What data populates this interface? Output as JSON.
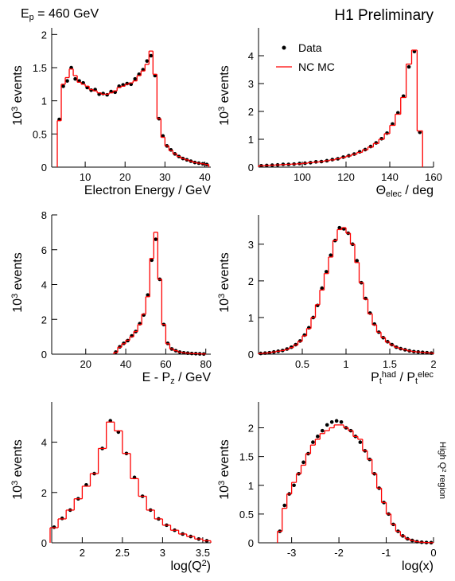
{
  "header": {
    "energy": [
      "E",
      {
        "sub": "p"
      },
      " = 460 GeV"
    ],
    "label": "H1 Preliminary"
  },
  "side_note": [
    "High Q",
    {
      "sup": "2"
    },
    " region"
  ],
  "chart_data": [
    {
      "type": "histogram",
      "xlabel": [
        "Electron Energy / GeV"
      ],
      "ylabel": [
        "10",
        {
          "sup": "3"
        },
        " events"
      ],
      "xlim": [
        1.6,
        41.5
      ],
      "ylim": [
        0,
        2.1
      ],
      "xticks": [
        10,
        20,
        30,
        40
      ],
      "yticks": [
        0,
        0.5,
        1,
        1.5,
        2
      ],
      "bins": [
        3,
        4,
        5,
        6,
        7,
        8,
        9,
        10,
        11,
        12,
        13,
        14,
        15,
        16,
        17,
        18,
        19,
        20,
        21,
        22,
        23,
        24,
        25,
        26,
        27,
        28,
        29,
        30,
        31,
        32,
        33,
        34,
        35,
        36,
        37,
        38,
        39,
        40,
        41
      ],
      "series": [
        {
          "color": "#000000",
          "style": "points",
          "values": [
            0.72,
            1.22,
            1.3,
            1.5,
            1.33,
            1.3,
            1.27,
            1.2,
            1.16,
            1.17,
            1.1,
            1.11,
            1.09,
            1.14,
            1.13,
            1.22,
            1.24,
            1.26,
            1.25,
            1.33,
            1.4,
            1.47,
            1.6,
            1.68,
            1.38,
            0.73,
            0.47,
            0.32,
            0.26,
            0.2,
            0.16,
            0.13,
            0.11,
            0.09,
            0.07,
            0.06,
            0.05,
            0.04
          ]
        },
        {
          "color": "#ff0000",
          "style": "step",
          "values": [
            0.7,
            1.25,
            1.35,
            1.48,
            1.38,
            1.28,
            1.25,
            1.22,
            1.17,
            1.15,
            1.12,
            1.1,
            1.1,
            1.12,
            1.15,
            1.2,
            1.22,
            1.25,
            1.27,
            1.3,
            1.38,
            1.45,
            1.55,
            1.75,
            1.4,
            0.73,
            0.45,
            0.32,
            0.25,
            0.2,
            0.16,
            0.13,
            0.11,
            0.09,
            0.07,
            0.06,
            0.05,
            0.04
          ]
        }
      ]
    },
    {
      "type": "histogram",
      "xlabel": [
        "Θ",
        {
          "sub": "elec"
        },
        " / deg"
      ],
      "ylabel": [
        "10",
        {
          "sup": "3"
        },
        " events"
      ],
      "xlim": [
        80,
        160
      ],
      "ylim": [
        0,
        5
      ],
      "xticks": [
        100,
        120,
        140,
        160
      ],
      "yticks": [
        0,
        1,
        2,
        3,
        4
      ],
      "legend": "upper left",
      "bins": [
        80,
        82.5,
        85,
        87.5,
        90,
        92.5,
        95,
        97.5,
        100,
        102.5,
        105,
        107.5,
        110,
        112.5,
        115,
        117.5,
        120,
        122.5,
        125,
        127.5,
        130,
        132.5,
        135,
        137.5,
        140,
        142.5,
        145,
        147.5,
        150,
        152.5,
        155
      ],
      "series": [
        {
          "name": "Data",
          "color": "#000000",
          "style": "points",
          "values": [
            0.05,
            0.06,
            0.07,
            0.08,
            0.1,
            0.1,
            0.11,
            0.13,
            0.14,
            0.16,
            0.19,
            0.2,
            0.23,
            0.27,
            0.3,
            0.36,
            0.41,
            0.47,
            0.55,
            0.63,
            0.74,
            0.87,
            1.02,
            1.22,
            1.55,
            1.95,
            2.55,
            3.6,
            4.15,
            1.25
          ]
        },
        {
          "name": "NC MC",
          "color": "#ff0000",
          "style": "step",
          "values": [
            0.05,
            0.06,
            0.07,
            0.08,
            0.09,
            0.1,
            0.11,
            0.12,
            0.14,
            0.16,
            0.18,
            0.2,
            0.23,
            0.26,
            0.3,
            0.35,
            0.4,
            0.46,
            0.53,
            0.62,
            0.72,
            0.85,
            1.0,
            1.2,
            1.5,
            1.9,
            2.5,
            3.7,
            4.2,
            1.3
          ]
        }
      ]
    },
    {
      "type": "histogram",
      "xlabel": [
        "E - P",
        {
          "sub": "z"
        },
        " / GeV"
      ],
      "ylabel": [
        "10",
        {
          "sup": "3"
        },
        " events"
      ],
      "xlim": [
        3,
        82.5
      ],
      "ylim": [
        0,
        8
      ],
      "xticks": [
        20,
        40,
        60,
        80
      ],
      "yticks": [
        0,
        2,
        4,
        6,
        8
      ],
      "bins": [
        34,
        36,
        38,
        40,
        42,
        44,
        46,
        48,
        50,
        52,
        54,
        56,
        58,
        60,
        62,
        64,
        66,
        68,
        70,
        72,
        74,
        76,
        78,
        80
      ],
      "series": [
        {
          "color": "#000000",
          "style": "points",
          "values": [
            0.12,
            0.42,
            0.62,
            0.78,
            1.05,
            1.3,
            1.75,
            2.25,
            3.4,
            5.4,
            6.6,
            4.3,
            1.7,
            0.62,
            0.3,
            0.2,
            0.12,
            0.08,
            0.06,
            0.04,
            0.03,
            0.02,
            0.01
          ]
        },
        {
          "color": "#ff0000",
          "style": "step",
          "values": [
            0.1,
            0.4,
            0.6,
            0.8,
            1.0,
            1.3,
            1.7,
            2.3,
            3.3,
            5.5,
            7.0,
            4.3,
            1.7,
            0.6,
            0.3,
            0.2,
            0.12,
            0.08,
            0.06,
            0.04,
            0.03,
            0.02,
            0.01
          ]
        }
      ]
    },
    {
      "type": "histogram",
      "xlabel": [
        "P",
        {
          "sub": "t"
        },
        {
          "sup": "had"
        },
        " / P",
        {
          "sub": "t"
        },
        {
          "sup": "elec"
        }
      ],
      "ylabel": [
        "10",
        {
          "sup": "3"
        },
        " events"
      ],
      "xlim": [
        0,
        2
      ],
      "ylim": [
        0,
        3.8
      ],
      "xticks": [
        0.5,
        1,
        1.5,
        2
      ],
      "yticks": [
        0,
        1,
        2,
        3
      ],
      "bins": [
        0,
        0.05,
        0.1,
        0.15,
        0.2,
        0.25,
        0.3,
        0.35,
        0.4,
        0.45,
        0.5,
        0.55,
        0.6,
        0.65,
        0.7,
        0.75,
        0.8,
        0.85,
        0.9,
        0.95,
        1.0,
        1.05,
        1.1,
        1.15,
        1.2,
        1.25,
        1.3,
        1.35,
        1.4,
        1.45,
        1.5,
        1.55,
        1.6,
        1.65,
        1.7,
        1.75,
        1.8,
        1.85,
        1.9,
        1.95,
        2.0
      ],
      "series": [
        {
          "color": "#000000",
          "style": "points",
          "values": [
            0.02,
            0.03,
            0.04,
            0.06,
            0.08,
            0.1,
            0.14,
            0.19,
            0.26,
            0.36,
            0.52,
            0.72,
            1.0,
            1.33,
            1.8,
            2.25,
            2.7,
            3.1,
            3.45,
            3.42,
            3.3,
            3.0,
            2.55,
            1.95,
            1.52,
            1.12,
            0.82,
            0.6,
            0.45,
            0.34,
            0.26,
            0.19,
            0.15,
            0.12,
            0.09,
            0.07,
            0.06,
            0.05,
            0.04,
            0.03
          ]
        },
        {
          "color": "#ff0000",
          "style": "step",
          "values": [
            0.02,
            0.03,
            0.04,
            0.06,
            0.08,
            0.1,
            0.13,
            0.18,
            0.25,
            0.35,
            0.5,
            0.7,
            1.0,
            1.35,
            1.75,
            2.2,
            2.65,
            3.1,
            3.4,
            3.45,
            3.3,
            3.0,
            2.5,
            1.95,
            1.5,
            1.1,
            0.8,
            0.6,
            0.45,
            0.33,
            0.25,
            0.19,
            0.15,
            0.12,
            0.09,
            0.07,
            0.06,
            0.05,
            0.04,
            0.03
          ]
        }
      ]
    },
    {
      "type": "histogram",
      "xlabel": [
        "log(Q",
        {
          "sup": "2"
        },
        ")"
      ],
      "ylabel": [
        "10",
        {
          "sup": "3"
        },
        " events"
      ],
      "xlim": [
        1.62,
        3.6
      ],
      "ylim": [
        0,
        5.6
      ],
      "xticks": [
        2,
        2.5,
        3,
        3.5
      ],
      "yticks": [
        0,
        2,
        4
      ],
      "bins": [
        1.6,
        1.7,
        1.8,
        1.9,
        2.0,
        2.1,
        2.2,
        2.3,
        2.4,
        2.5,
        2.6,
        2.7,
        2.8,
        2.9,
        3.0,
        3.1,
        3.2,
        3.3,
        3.4,
        3.5,
        3.6
      ],
      "series": [
        {
          "color": "#000000",
          "style": "points",
          "values": [
            0.62,
            0.97,
            1.3,
            1.75,
            2.3,
            2.75,
            3.75,
            4.85,
            4.4,
            3.55,
            2.6,
            1.85,
            1.3,
            0.95,
            0.7,
            0.5,
            0.35,
            0.25,
            0.15,
            0.08
          ]
        },
        {
          "color": "#ff0000",
          "style": "step",
          "values": [
            0.6,
            0.95,
            1.3,
            1.75,
            2.25,
            2.75,
            3.75,
            4.8,
            4.45,
            3.55,
            2.55,
            1.85,
            1.3,
            0.95,
            0.7,
            0.5,
            0.35,
            0.25,
            0.15,
            0.08
          ]
        }
      ]
    },
    {
      "type": "histogram",
      "xlabel": [
        "log(x)"
      ],
      "ylabel": [
        "10",
        {
          "sup": "3"
        },
        " events"
      ],
      "xlim": [
        -3.7,
        0
      ],
      "ylim": [
        0,
        2.45
      ],
      "xticks": [
        -3,
        -2,
        -1,
        0
      ],
      "yticks": [
        0,
        0.5,
        1,
        1.5,
        2
      ],
      "bins": [
        -3.3,
        -3.2,
        -3.1,
        -3.0,
        -2.9,
        -2.8,
        -2.7,
        -2.6,
        -2.5,
        -2.4,
        -2.3,
        -2.2,
        -2.1,
        -2.0,
        -1.9,
        -1.8,
        -1.7,
        -1.6,
        -1.5,
        -1.4,
        -1.3,
        -1.2,
        -1.1,
        -1.0,
        -0.9,
        -0.8,
        -0.7,
        -0.6,
        -0.5,
        -0.4,
        -0.3,
        -0.2,
        -0.1,
        0
      ],
      "series": [
        {
          "color": "#000000",
          "style": "points",
          "values": [
            0.2,
            0.65,
            0.85,
            1.0,
            1.2,
            1.4,
            1.55,
            1.75,
            1.85,
            1.95,
            2.05,
            2.1,
            2.12,
            2.1,
            2.0,
            1.95,
            1.85,
            1.75,
            1.6,
            1.45,
            1.2,
            0.95,
            0.7,
            0.5,
            0.32,
            0.2,
            0.12,
            0.07,
            0.04,
            0.02,
            0.01,
            0.005,
            0.002
          ]
        },
        {
          "color": "#ff0000",
          "style": "step",
          "values": [
            0.2,
            0.6,
            0.85,
            1.05,
            1.2,
            1.35,
            1.55,
            1.7,
            1.8,
            1.9,
            1.95,
            2.0,
            2.05,
            2.05,
            2.0,
            1.95,
            1.85,
            1.8,
            1.6,
            1.45,
            1.2,
            0.95,
            0.7,
            0.5,
            0.32,
            0.2,
            0.12,
            0.07,
            0.04,
            0.02,
            0.01,
            0.005,
            0.002
          ]
        }
      ]
    }
  ]
}
